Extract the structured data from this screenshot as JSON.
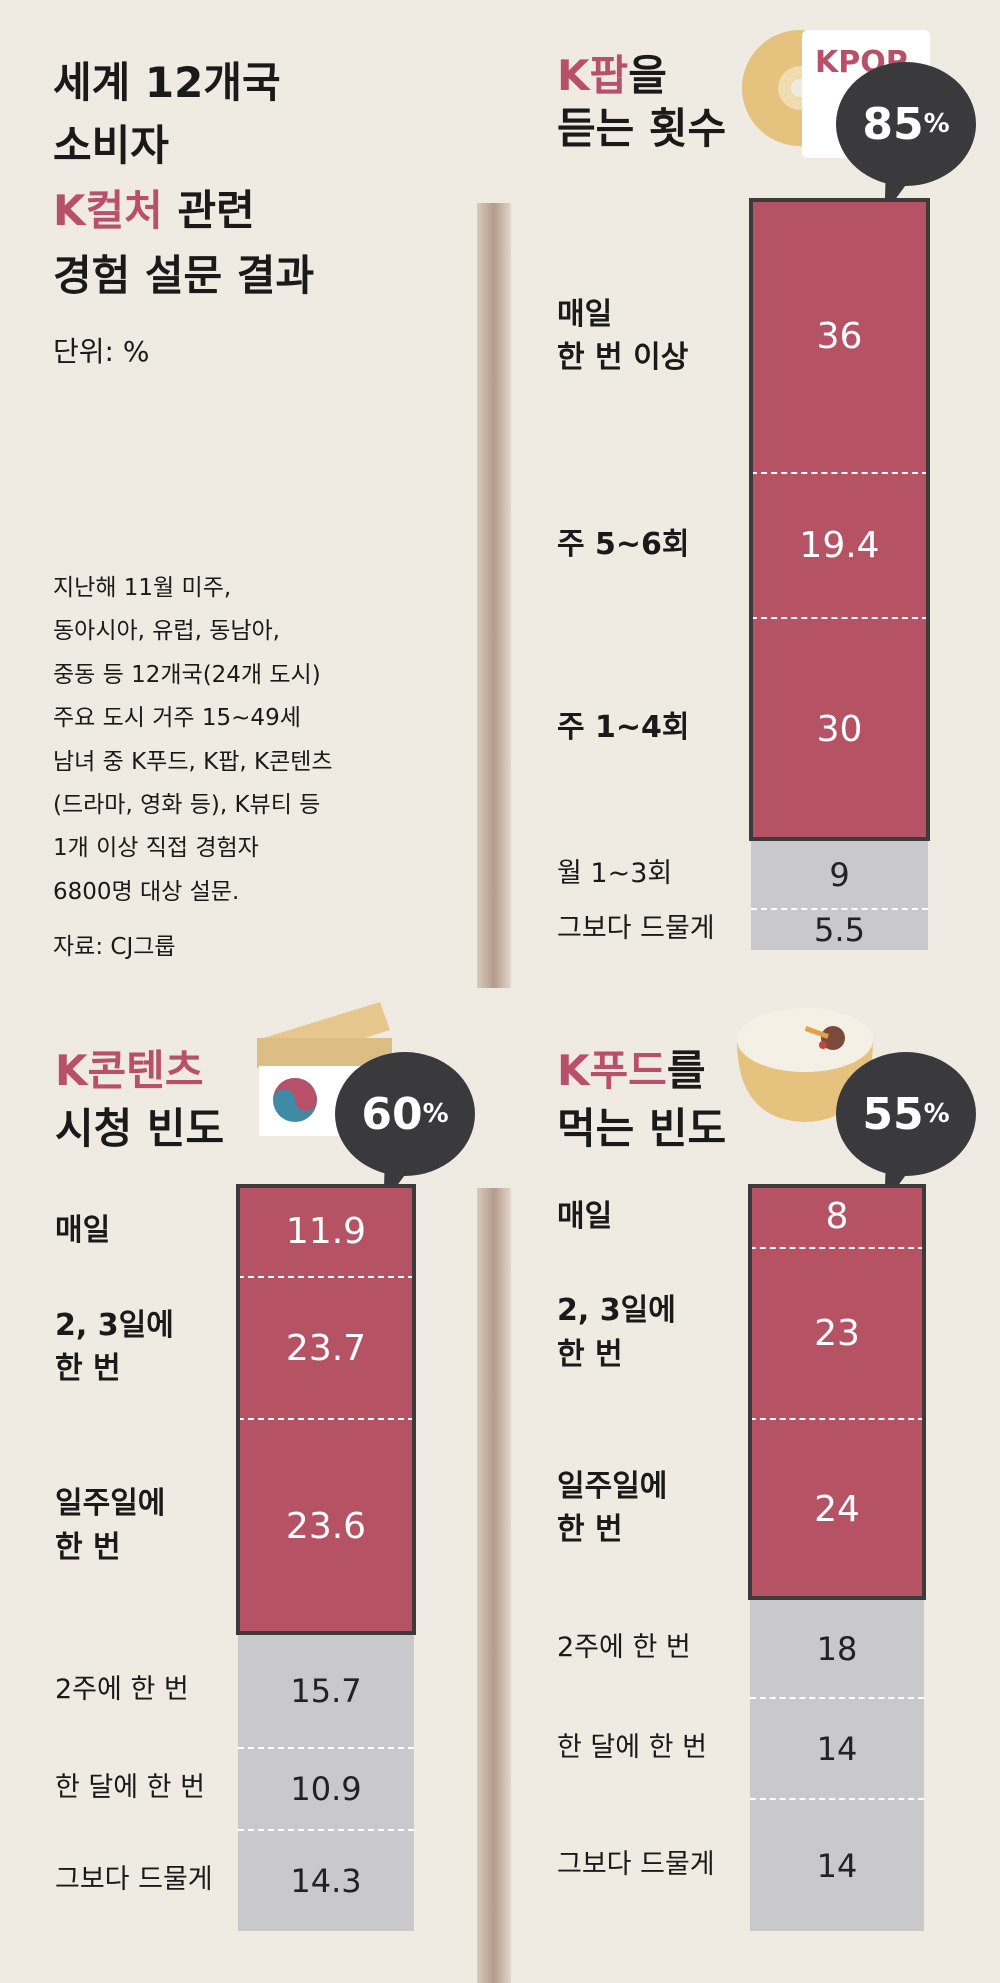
{
  "intro": {
    "title_line1": "세계 12개국",
    "title_line2": "소비자",
    "title_accent": "K컬처",
    "title_line3_rest": " 관련",
    "title_line4": "경험 설문 결과",
    "unit": "단위: %",
    "note_lines": [
      "지난해 11월 미주,",
      "동아시아, 유럽, 동남아,",
      "중동 등 12개국(24개 도시)",
      "주요 도시 거주 15~49세",
      "남녀 중 K푸드, K팝, K콘텐츠",
      "(드라마, 영화 등), K뷰티 등",
      "1개 이상 직접 경험자",
      "6800명 대상 설문."
    ],
    "source": "자료: CJ그룹",
    "kpop_logo": "KPOP"
  },
  "colors": {
    "accent": "#b8506a",
    "bar_red": "#b55264",
    "bar_gray": "#c9c9cb",
    "background": "#efebe2",
    "bubble": "#3a3a3c"
  },
  "chart_data": [
    {
      "type": "bar",
      "stacked": true,
      "title_accent": "K팝",
      "title_rest": "을",
      "title_line2": "듣는 횟수",
      "badge_value": "85",
      "badge_unit": "%",
      "categories": [
        "매일\n한 번 이상",
        "주 5~6회",
        "주 1~4회",
        "월 1~3회",
        "그보다 드물게"
      ],
      "values": [
        "36",
        "19.4",
        "30",
        "9",
        "5.5"
      ],
      "highlighted": [
        true,
        true,
        true,
        false,
        false
      ]
    },
    {
      "type": "bar",
      "stacked": true,
      "title_accent": "K콘텐츠",
      "title_rest": "",
      "title_line2": "시청 빈도",
      "badge_value": "60",
      "badge_unit": "%",
      "categories": [
        "매일",
        "2, 3일에\n한 번",
        "일주일에\n한 번",
        "2주에 한 번",
        "한 달에 한 번",
        "그보다 드물게"
      ],
      "values": [
        "11.9",
        "23.7",
        "23.6",
        "15.7",
        "10.9",
        "14.3"
      ],
      "highlighted": [
        true,
        true,
        true,
        false,
        false,
        false
      ]
    },
    {
      "type": "bar",
      "stacked": true,
      "title_accent": "K푸드",
      "title_rest": "를",
      "title_line2": "먹는 빈도",
      "badge_value": "55",
      "badge_unit": "%",
      "categories": [
        "매일",
        "2, 3일에\n한 번",
        "일주일에\n한 번",
        "2주에 한 번",
        "한 달에 한 번",
        "그보다 드물게"
      ],
      "values": [
        "8",
        "23",
        "24",
        "18",
        "14",
        "14"
      ],
      "highlighted": [
        true,
        true,
        true,
        false,
        false,
        false
      ]
    }
  ]
}
